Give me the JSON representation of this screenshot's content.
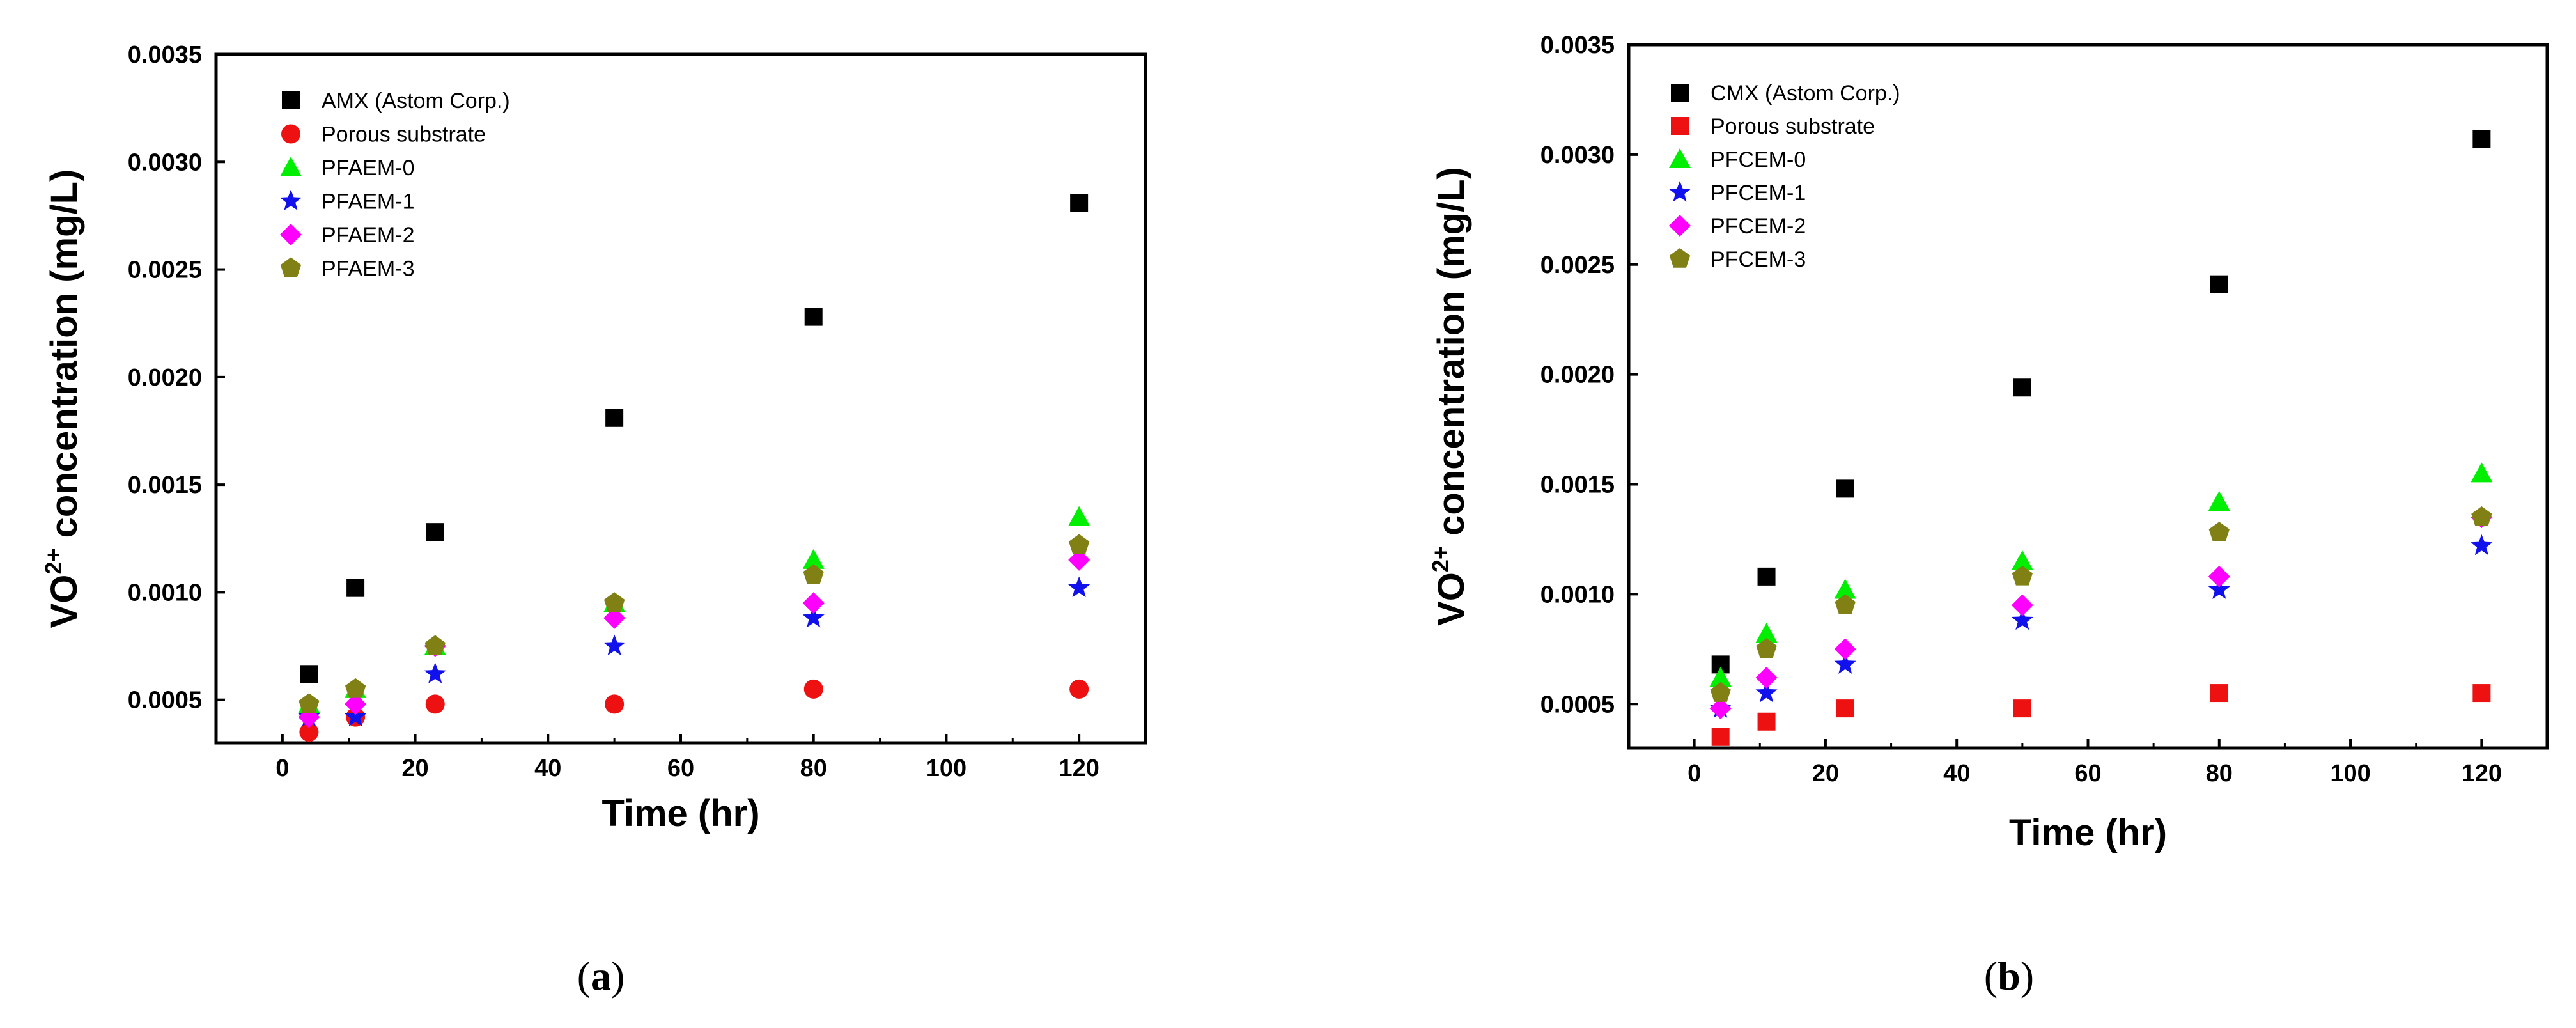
{
  "chart_data": [
    {
      "type": "scatter",
      "panel_label": "a",
      "xlabel": "Time (hr)",
      "ylabel_base": "VO",
      "ylabel_sup": "2+",
      "ylabel_rest": " concentration (mg/L)",
      "xlim": [
        -10,
        130
      ],
      "ylim": [
        0.0003,
        0.0035
      ],
      "xticks": [
        0,
        20,
        40,
        60,
        80,
        100,
        120
      ],
      "yticks": [
        0.0005,
        0.001,
        0.0015,
        0.002,
        0.0025,
        0.003,
        0.0035
      ],
      "ytick_labels": [
        "0.0005",
        "0.0010",
        "0.0015",
        "0.0020",
        "0.0025",
        "0.0030",
        "0.0035"
      ],
      "legend_position": "top-left",
      "series": [
        {
          "name": "AMX (Astom Corp.)",
          "marker": "square",
          "color": "#000000",
          "x": [
            4,
            11,
            23,
            50,
            80,
            120
          ],
          "y": [
            0.00062,
            0.00102,
            0.00128,
            0.00181,
            0.00228,
            0.00281
          ]
        },
        {
          "name": "Porous substrate",
          "marker": "circle",
          "color": "#ee1111",
          "x": [
            4,
            11,
            23,
            50,
            80,
            120
          ],
          "y": [
            0.00035,
            0.00042,
            0.00048,
            0.00048,
            0.00055,
            0.00055
          ]
        },
        {
          "name": "PFAEM-0",
          "marker": "triangle",
          "color": "#00ee00",
          "x": [
            4,
            11,
            23,
            50,
            80,
            120
          ],
          "y": [
            0.00048,
            0.00055,
            0.00075,
            0.00095,
            0.00115,
            0.00135
          ]
        },
        {
          "name": "PFAEM-1",
          "marker": "star",
          "color": "#1111ee",
          "x": [
            4,
            11,
            23,
            50,
            80,
            120
          ],
          "y": [
            0.00042,
            0.00042,
            0.00062,
            0.00075,
            0.00088,
            0.00102
          ]
        },
        {
          "name": "PFAEM-2",
          "marker": "diamond",
          "color": "#ff00ff",
          "x": [
            4,
            11,
            23,
            50,
            80,
            120
          ],
          "y": [
            0.00042,
            0.00048,
            0.00075,
            0.00088,
            0.00095,
            0.00115
          ]
        },
        {
          "name": "PFAEM-3",
          "marker": "pentagon",
          "color": "#808015",
          "x": [
            4,
            11,
            23,
            50,
            80,
            120
          ],
          "y": [
            0.00048,
            0.00055,
            0.00075,
            0.00095,
            0.00108,
            0.00122
          ]
        }
      ]
    },
    {
      "type": "scatter",
      "panel_label": "b",
      "xlabel": "Time (hr)",
      "ylabel_base": "VO",
      "ylabel_sup": "2+",
      "ylabel_rest": " concentration (mg/L)",
      "xlim": [
        -10,
        130
      ],
      "ylim": [
        0.0003,
        0.0035
      ],
      "xticks": [
        0,
        20,
        40,
        60,
        80,
        100,
        120
      ],
      "yticks": [
        0.0005,
        0.001,
        0.0015,
        0.002,
        0.0025,
        0.003,
        0.0035
      ],
      "ytick_labels": [
        "0.0005",
        "0.0010",
        "0.0015",
        "0.0020",
        "0.0025",
        "0.0030",
        "0.0035"
      ],
      "legend_position": "top-left",
      "series": [
        {
          "name": "CMX (Astom Corp.)",
          "marker": "square",
          "color": "#000000",
          "x": [
            4,
            11,
            23,
            50,
            80,
            120
          ],
          "y": [
            0.00068,
            0.00108,
            0.00148,
            0.00194,
            0.00241,
            0.00307
          ]
        },
        {
          "name": "Porous substrate",
          "marker": "square",
          "color": "#ee1111",
          "x": [
            4,
            11,
            23,
            50,
            80,
            120
          ],
          "y": [
            0.00035,
            0.00042,
            0.00048,
            0.00048,
            0.00055,
            0.00055
          ]
        },
        {
          "name": "PFCEM-0",
          "marker": "triangle",
          "color": "#00ee00",
          "x": [
            4,
            11,
            23,
            50,
            80,
            120
          ],
          "y": [
            0.00062,
            0.00082,
            0.00102,
            0.00115,
            0.00142,
            0.00155
          ]
        },
        {
          "name": "PFCEM-1",
          "marker": "star",
          "color": "#1111ee",
          "x": [
            4,
            11,
            23,
            50,
            80,
            120
          ],
          "y": [
            0.00048,
            0.00055,
            0.00068,
            0.00088,
            0.00102,
            0.00122
          ]
        },
        {
          "name": "PFCEM-2",
          "marker": "diamond",
          "color": "#ff00ff",
          "x": [
            4,
            11,
            23,
            50,
            80,
            120
          ],
          "y": [
            0.00048,
            0.00062,
            0.00075,
            0.00095,
            0.00108,
            0.00135
          ]
        },
        {
          "name": "PFCEM-3",
          "marker": "pentagon",
          "color": "#808015",
          "x": [
            4,
            11,
            23,
            50,
            80,
            120
          ],
          "y": [
            0.00055,
            0.00075,
            0.00095,
            0.00108,
            0.00128,
            0.00135
          ]
        }
      ]
    }
  ]
}
